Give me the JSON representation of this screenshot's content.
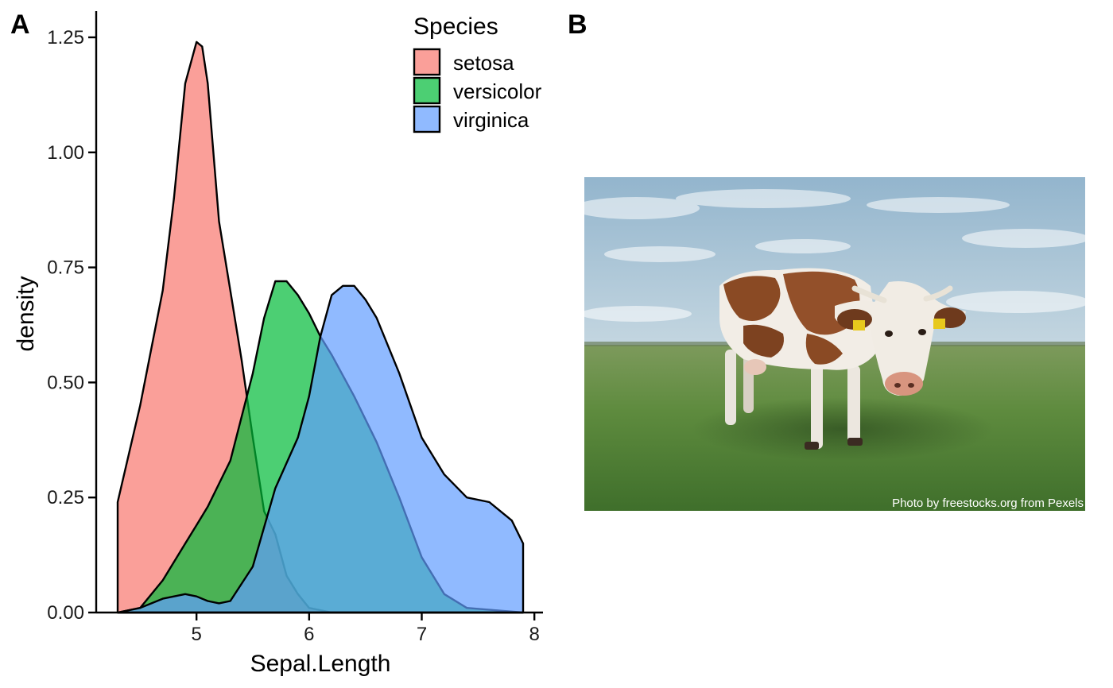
{
  "panels": {
    "a_label": "A",
    "b_label": "B"
  },
  "chart_data": {
    "type": "area",
    "chart_style": "density",
    "xlabel": "Sepal.Length",
    "ylabel": "density",
    "xlim": [
      4.3,
      7.9
    ],
    "ylim": [
      0,
      1.25
    ],
    "x_ticks": [
      5,
      6,
      7,
      8
    ],
    "x_tick_labels": [
      "5",
      "6",
      "7",
      "8"
    ],
    "y_ticks": [
      0,
      0.25,
      0.5,
      0.75,
      1.0,
      1.25
    ],
    "y_tick_labels": [
      "0.00",
      "0.25",
      "0.50",
      "0.75",
      "1.00",
      "1.25"
    ],
    "grid": false,
    "legend": {
      "title": "Species",
      "position": "top-right"
    },
    "series": [
      {
        "name": "setosa",
        "color": "#F8766D",
        "x": [
          4.3,
          4.5,
          4.7,
          4.8,
          4.9,
          5.0,
          5.05,
          5.1,
          5.2,
          5.3,
          5.4,
          5.5,
          5.6,
          5.7,
          5.8,
          5.9,
          6.0,
          6.2,
          7.9
        ],
        "y": [
          0.24,
          0.45,
          0.7,
          0.9,
          1.15,
          1.24,
          1.23,
          1.15,
          0.85,
          0.7,
          0.55,
          0.38,
          0.22,
          0.17,
          0.08,
          0.04,
          0.01,
          0.0,
          0.0
        ]
      },
      {
        "name": "versicolor",
        "color": "#00BA38",
        "x": [
          4.3,
          4.5,
          4.7,
          4.9,
          5.0,
          5.1,
          5.3,
          5.5,
          5.6,
          5.7,
          5.8,
          5.9,
          6.0,
          6.1,
          6.2,
          6.4,
          6.6,
          6.8,
          7.0,
          7.2,
          7.4,
          7.9
        ],
        "y": [
          0.0,
          0.01,
          0.07,
          0.15,
          0.19,
          0.23,
          0.33,
          0.52,
          0.64,
          0.72,
          0.72,
          0.69,
          0.65,
          0.6,
          0.56,
          0.47,
          0.37,
          0.25,
          0.12,
          0.04,
          0.01,
          0.0
        ]
      },
      {
        "name": "virginica",
        "color": "#619CFF",
        "x": [
          4.3,
          4.5,
          4.7,
          4.9,
          5.0,
          5.1,
          5.2,
          5.3,
          5.5,
          5.7,
          5.9,
          6.0,
          6.1,
          6.2,
          6.3,
          6.4,
          6.5,
          6.6,
          6.8,
          7.0,
          7.2,
          7.4,
          7.6,
          7.8,
          7.9
        ],
        "y": [
          0.0,
          0.01,
          0.03,
          0.04,
          0.035,
          0.025,
          0.02,
          0.025,
          0.1,
          0.27,
          0.38,
          0.47,
          0.6,
          0.69,
          0.71,
          0.71,
          0.68,
          0.64,
          0.52,
          0.38,
          0.3,
          0.25,
          0.24,
          0.2,
          0.15
        ]
      }
    ]
  },
  "photo": {
    "credit": "Photo by freestocks.org from Pexels"
  }
}
